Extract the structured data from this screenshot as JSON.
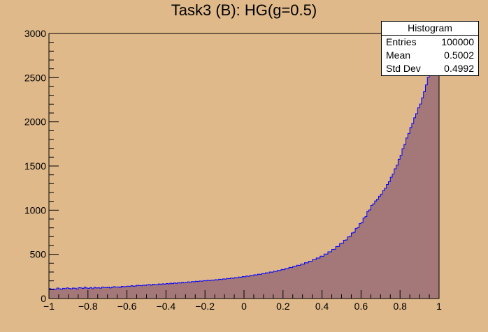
{
  "chart_data": {
    "type": "bar",
    "title": "Task3 (B): HG(g=0.5)",
    "xlabel": "",
    "ylabel": "",
    "xlim": [
      -1,
      1
    ],
    "ylim": [
      0,
      3000
    ],
    "x_ticks": [
      "−1",
      "−0.8",
      "−0.6",
      "−0.4",
      "−0.2",
      "0",
      "0.2",
      "0.4",
      "0.6",
      "0.8",
      "1"
    ],
    "y_ticks": [
      "0",
      "500",
      "1000",
      "1500",
      "2000",
      "2500",
      "3000"
    ],
    "bins": 200,
    "bin_range": [
      -1,
      1
    ],
    "values": [
      112,
      105,
      108,
      104,
      118,
      110,
      106,
      115,
      112,
      120,
      113,
      110,
      118,
      116,
      108,
      122,
      120,
      114,
      128,
      118,
      115,
      124,
      112,
      126,
      119,
      121,
      117,
      130,
      125,
      122,
      128,
      120,
      126,
      134,
      129,
      131,
      125,
      138,
      133,
      136,
      140,
      137,
      145,
      139,
      143,
      150,
      147,
      145,
      152,
      149,
      155,
      158,
      151,
      162,
      158,
      156,
      165,
      160,
      167,
      163,
      170,
      166,
      174,
      169,
      177,
      172,
      180,
      176,
      184,
      179,
      183,
      188,
      185,
      191,
      189,
      195,
      192,
      198,
      196,
      202,
      200,
      206,
      203,
      209,
      207,
      213,
      211,
      218,
      215,
      222,
      220,
      227,
      225,
      232,
      229,
      237,
      235,
      243,
      240,
      249,
      246,
      255,
      252,
      262,
      259,
      268,
      266,
      275,
      273,
      283,
      281,
      291,
      289,
      300,
      298,
      309,
      307,
      318,
      316,
      329,
      327,
      340,
      338,
      352,
      350,
      364,
      362,
      377,
      375,
      391,
      389,
      406,
      404,
      422,
      420,
      440,
      438,
      459,
      458,
      480,
      479,
      503,
      503,
      529,
      529,
      557,
      558,
      588,
      590,
      622,
      625,
      659,
      663,
      698,
      704,
      742,
      750,
      792,
      802,
      848,
      860,
      912,
      927,
      986,
      1003,
      1055,
      1072,
      1104,
      1124,
      1158,
      1181,
      1220,
      1247,
      1291,
      1322,
      1373,
      1409,
      1468,
      1509,
      1576,
      1621,
      1695,
      1744,
      1817,
      1868,
      1935,
      1982,
      2046,
      2092,
      2158,
      2202,
      2272,
      2341,
      2418,
      2503,
      2598,
      2710,
      2841,
      2990,
      3160
    ],
    "fill_color": "#a47878",
    "line_color": "#0000ff",
    "background_color": "#dfb98a",
    "grid": false,
    "legend": "top-right"
  },
  "stats": {
    "name": "Histogram",
    "rows": [
      {
        "label": "Entries",
        "value": "100000"
      },
      {
        "label": "Mean",
        "value": "0.5002"
      },
      {
        "label": "Std Dev",
        "value": "0.4992"
      }
    ]
  }
}
